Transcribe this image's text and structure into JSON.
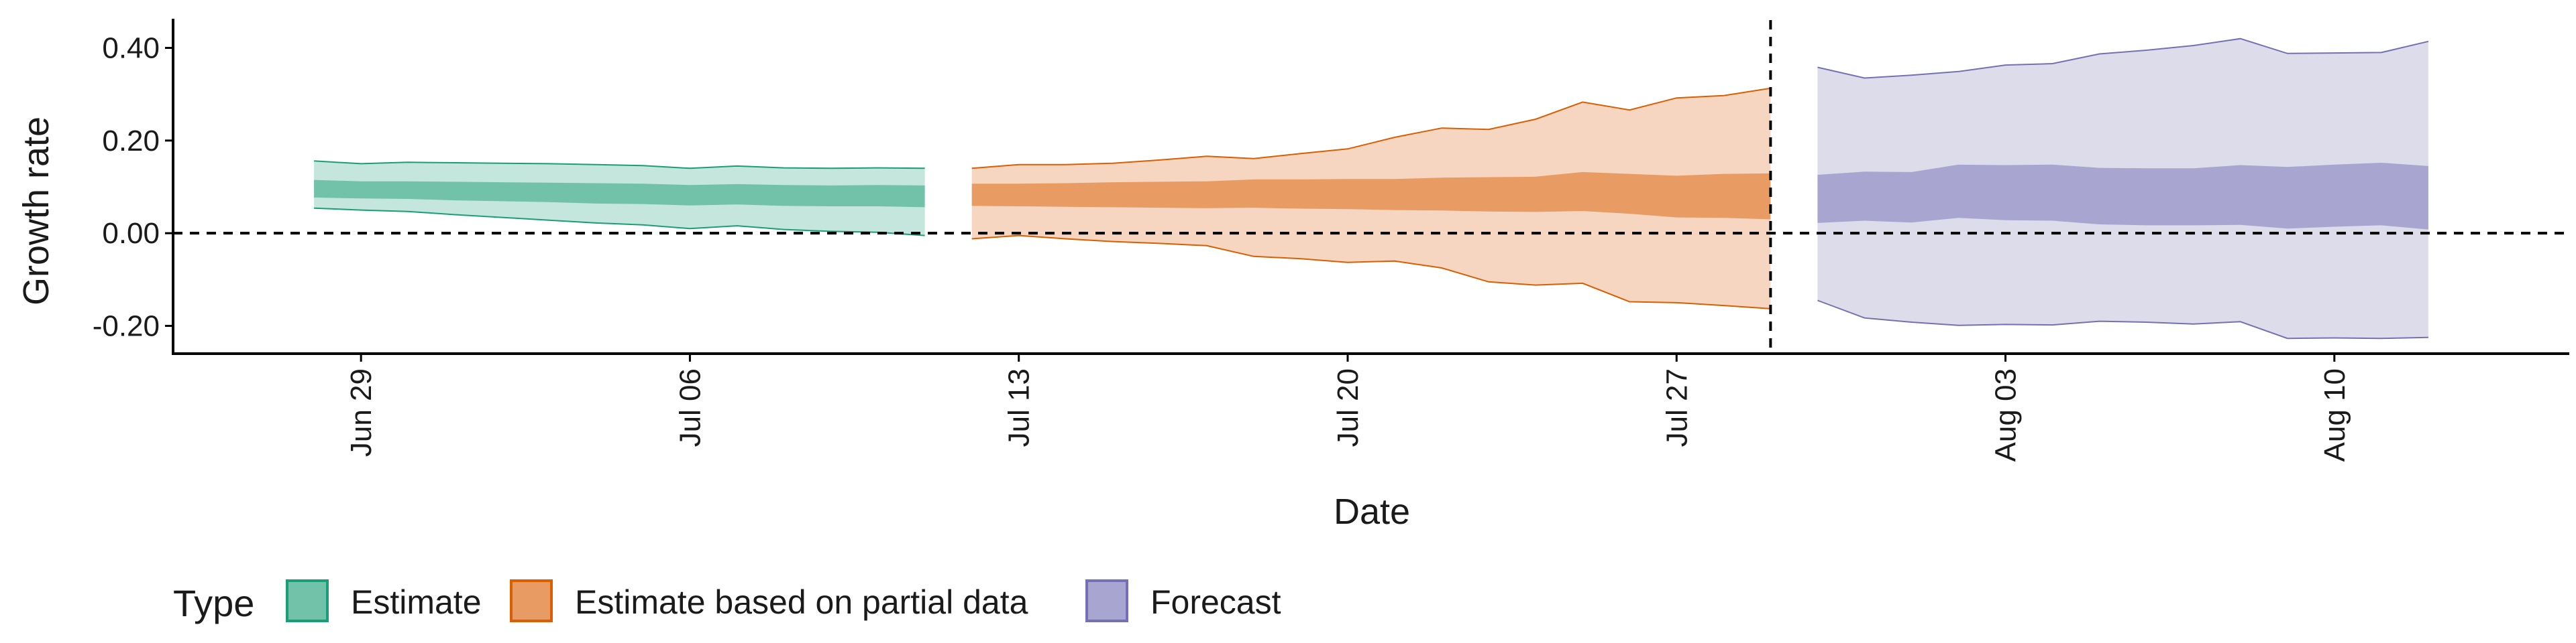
{
  "chart_data": {
    "type": "area",
    "title": "",
    "xlabel": "Date",
    "ylabel": "Growth rate",
    "ylim": [
      -0.26,
      0.46
    ],
    "xlim": [
      "2020-06-25",
      "2020-08-15"
    ],
    "grid": false,
    "y_ticks": [
      {
        "value": 0.4,
        "label": "0.40"
      },
      {
        "value": 0.2,
        "label": "0.20"
      },
      {
        "value": 0.0,
        "label": "0.00"
      },
      {
        "value": -0.2,
        "label": "-0.20"
      }
    ],
    "x_ticks": [
      {
        "date": "2020-06-29",
        "label": "Jun 29"
      },
      {
        "date": "2020-07-06",
        "label": "Jul 06"
      },
      {
        "date": "2020-07-13",
        "label": "Jul 13"
      },
      {
        "date": "2020-07-20",
        "label": "Jul 20"
      },
      {
        "date": "2020-07-27",
        "label": "Jul 27"
      },
      {
        "date": "2020-08-03",
        "label": "Aug 03"
      },
      {
        "date": "2020-08-10",
        "label": "Aug 10"
      }
    ],
    "reference_lines": {
      "horizontal_y": 0.0,
      "vertical_date": "2020-07-29"
    },
    "legend": {
      "title": "Type",
      "position": "bottom",
      "entries": [
        "Estimate",
        "Estimate based on partial data",
        "Forecast"
      ]
    },
    "colors": {
      "Estimate": {
        "outer": "#c4e6dc",
        "inner": "#72c1a9",
        "line": "#1b9e77"
      },
      "Estimate based on partial data": {
        "outer": "#f6d6c0",
        "inner": "#e89b63",
        "line": "#d95f02"
      },
      "Forecast": {
        "outer": "#dddcea",
        "inner": "#a9a5d1",
        "line": "#7570b3"
      }
    },
    "series": [
      {
        "name": "Estimate",
        "start_date": "2020-06-28",
        "dates": [
          "2020-06-28",
          "2020-06-29",
          "2020-06-30",
          "2020-07-01",
          "2020-07-02",
          "2020-07-03",
          "2020-07-04",
          "2020-07-05",
          "2020-07-06",
          "2020-07-07",
          "2020-07-08",
          "2020-07-09",
          "2020-07-10",
          "2020-07-11"
        ],
        "outer_upper": [
          0.156,
          0.15,
          0.153,
          0.152,
          0.151,
          0.15,
          0.148,
          0.146,
          0.14,
          0.145,
          0.141,
          0.14,
          0.141,
          0.14
        ],
        "outer_lower": [
          0.054,
          0.05,
          0.047,
          0.04,
          0.034,
          0.028,
          0.022,
          0.018,
          0.01,
          0.016,
          0.008,
          0.004,
          0.002,
          -0.005
        ],
        "inner_upper": [
          0.115,
          0.112,
          0.112,
          0.111,
          0.11,
          0.109,
          0.108,
          0.107,
          0.104,
          0.106,
          0.104,
          0.103,
          0.104,
          0.103
        ],
        "inner_lower": [
          0.077,
          0.075,
          0.074,
          0.071,
          0.069,
          0.067,
          0.064,
          0.063,
          0.06,
          0.062,
          0.059,
          0.058,
          0.058,
          0.056
        ]
      },
      {
        "name": "Estimate based on partial data",
        "start_date": "2020-07-12",
        "dates": [
          "2020-07-12",
          "2020-07-13",
          "2020-07-14",
          "2020-07-15",
          "2020-07-16",
          "2020-07-17",
          "2020-07-18",
          "2020-07-19",
          "2020-07-20",
          "2020-07-21",
          "2020-07-22",
          "2020-07-23",
          "2020-07-24",
          "2020-07-25",
          "2020-07-26",
          "2020-07-27",
          "2020-07-28",
          "2020-07-29"
        ],
        "outer_upper": [
          0.14,
          0.148,
          0.148,
          0.151,
          0.158,
          0.166,
          0.161,
          0.172,
          0.182,
          0.207,
          0.227,
          0.224,
          0.246,
          0.283,
          0.266,
          0.292,
          0.297,
          0.313
        ],
        "outer_lower": [
          -0.012,
          -0.005,
          -0.012,
          -0.018,
          -0.022,
          -0.027,
          -0.05,
          -0.055,
          -0.063,
          -0.06,
          -0.075,
          -0.105,
          -0.112,
          -0.108,
          -0.148,
          -0.15,
          -0.156,
          -0.163
        ],
        "inner_upper": [
          0.107,
          0.107,
          0.108,
          0.11,
          0.111,
          0.112,
          0.116,
          0.116,
          0.117,
          0.117,
          0.12,
          0.121,
          0.122,
          0.132,
          0.128,
          0.124,
          0.128,
          0.129
        ],
        "inner_lower": [
          0.059,
          0.058,
          0.057,
          0.056,
          0.055,
          0.054,
          0.055,
          0.053,
          0.052,
          0.05,
          0.049,
          0.047,
          0.046,
          0.048,
          0.042,
          0.034,
          0.033,
          0.03
        ]
      },
      {
        "name": "Forecast",
        "start_date": "2020-07-30",
        "dates": [
          "2020-07-30",
          "2020-07-31",
          "2020-08-01",
          "2020-08-02",
          "2020-08-03",
          "2020-08-04",
          "2020-08-05",
          "2020-08-06",
          "2020-08-07",
          "2020-08-08",
          "2020-08-09",
          "2020-08-10",
          "2020-08-11",
          "2020-08-12"
        ],
        "outer_upper": [
          0.358,
          0.335,
          0.341,
          0.349,
          0.363,
          0.366,
          0.387,
          0.395,
          0.405,
          0.42,
          0.388,
          0.389,
          0.39,
          0.414
        ],
        "outer_lower": [
          -0.145,
          -0.183,
          -0.192,
          -0.199,
          -0.197,
          -0.198,
          -0.19,
          -0.192,
          -0.196,
          -0.191,
          -0.227,
          -0.226,
          -0.227,
          -0.225
        ],
        "inner_upper": [
          0.126,
          0.133,
          0.132,
          0.148,
          0.147,
          0.148,
          0.141,
          0.14,
          0.14,
          0.147,
          0.143,
          0.148,
          0.152,
          0.145
        ],
        "inner_lower": [
          0.022,
          0.027,
          0.023,
          0.033,
          0.028,
          0.027,
          0.019,
          0.017,
          0.017,
          0.018,
          0.01,
          0.014,
          0.017,
          0.008
        ]
      }
    ]
  }
}
